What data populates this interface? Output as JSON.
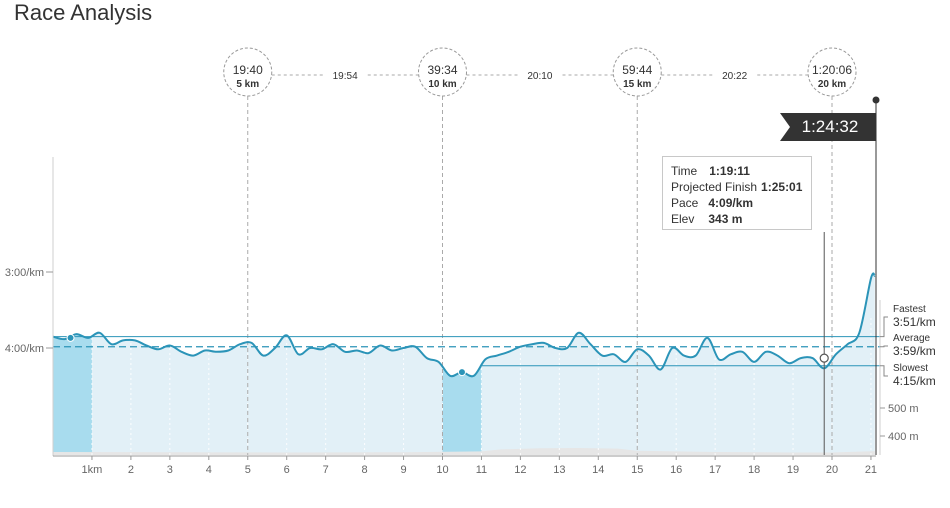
{
  "page": {
    "title": "Race Analysis"
  },
  "splits": [
    {
      "time": "19:40",
      "dist": "5 km",
      "km": 5
    },
    {
      "time": "39:34",
      "dist": "10 km",
      "km": 10
    },
    {
      "time": "59:44",
      "dist": "15 km",
      "km": 15
    },
    {
      "time": "1:20:06",
      "dist": "20 km",
      "km": 20
    }
  ],
  "segments": [
    {
      "label": "19:54",
      "from_km": 5,
      "to_km": 10
    },
    {
      "label": "20:10",
      "from_km": 10,
      "to_km": 15
    },
    {
      "label": "20:22",
      "from_km": 15,
      "to_km": 20
    }
  ],
  "finish": {
    "label": "1:24:32",
    "km": 21.1
  },
  "tooltip": {
    "time_label": "Time",
    "time_value": "1:19:11",
    "proj_label": "Projected Finish",
    "proj_value": "1:25:01",
    "pace_label": "Pace",
    "pace_value": "4:09/km",
    "elev_label": "Elev",
    "elev_value": "343 m"
  },
  "markers": {
    "fastest_label": "Fastest",
    "fastest_value": "3:51/km",
    "average_label": "Average",
    "average_value": "3:59/km",
    "slowest_label": "Slowest",
    "slowest_value": "4:15/km"
  },
  "colors": {
    "line": "#2b94b8",
    "fill": "#e2f0f7",
    "highlight": "#a8dcee",
    "elevation": "#e6e6e6",
    "flag": "#333333"
  },
  "chart_data": {
    "type": "line",
    "title": "Race Analysis",
    "x_unit": "km",
    "xlim": [
      0,
      21.1
    ],
    "x_ticks": [
      "1km",
      "2",
      "3",
      "4",
      "5",
      "6",
      "7",
      "8",
      "9",
      "10",
      "11",
      "12",
      "13",
      "14",
      "15",
      "16",
      "17",
      "18",
      "19",
      "20",
      "21"
    ],
    "pace_ticks": [
      {
        "label": "3:00/km",
        "sec": 180
      },
      {
        "label": "4:00/km",
        "sec": 240
      }
    ],
    "elev_ticks": [
      {
        "label": "500 m",
        "m": 500
      },
      {
        "label": "400 m",
        "m": 400
      }
    ],
    "highlight_km": [
      [
        0,
        1
      ],
      [
        10,
        11
      ]
    ],
    "cursor_km": 19.8,
    "pace_series": {
      "name": "Pace",
      "x": [
        0,
        0.3,
        0.6,
        0.9,
        1.2,
        1.5,
        1.8,
        2.1,
        2.4,
        2.7,
        3.0,
        3.3,
        3.6,
        3.9,
        4.2,
        4.5,
        4.8,
        5.1,
        5.4,
        5.7,
        6.0,
        6.3,
        6.6,
        6.9,
        7.2,
        7.5,
        7.8,
        8.1,
        8.4,
        8.7,
        9.0,
        9.3,
        9.6,
        9.9,
        10.2,
        10.5,
        10.8,
        11.1,
        11.4,
        11.7,
        12.0,
        12.3,
        12.6,
        12.9,
        13.2,
        13.5,
        13.8,
        14.1,
        14.4,
        14.7,
        15.0,
        15.3,
        15.6,
        15.9,
        16.2,
        16.5,
        16.8,
        17.1,
        17.4,
        17.7,
        18.0,
        18.3,
        18.6,
        18.9,
        19.2,
        19.5,
        19.8,
        20.1,
        20.4,
        20.7,
        21.0,
        21.1
      ],
      "pace_sec": [
        231,
        233,
        229,
        232,
        228,
        237,
        234,
        234,
        238,
        241,
        238,
        243,
        246,
        242,
        243,
        242,
        237,
        236,
        246,
        240,
        230,
        245,
        240,
        241,
        237,
        243,
        242,
        244,
        238,
        242,
        240,
        239,
        248,
        251,
        262,
        259,
        262,
        249,
        246,
        243,
        239,
        237,
        236,
        240,
        240,
        228,
        237,
        246,
        245,
        251,
        241,
        246,
        257,
        240,
        246,
        246,
        232,
        249,
        245,
        243,
        251,
        243,
        246,
        252,
        248,
        248,
        256,
        245,
        237,
        228,
        185,
        183
      ]
    },
    "elevation_series": {
      "name": "Elevation",
      "x": [
        0,
        3,
        6,
        9,
        11,
        11.5,
        12.5,
        13.5,
        14.5,
        15,
        17,
        19,
        20,
        21.1
      ],
      "m": [
        343,
        342,
        341,
        342,
        345,
        352,
        356,
        357,
        355,
        347,
        343,
        341,
        341,
        346
      ]
    }
  }
}
